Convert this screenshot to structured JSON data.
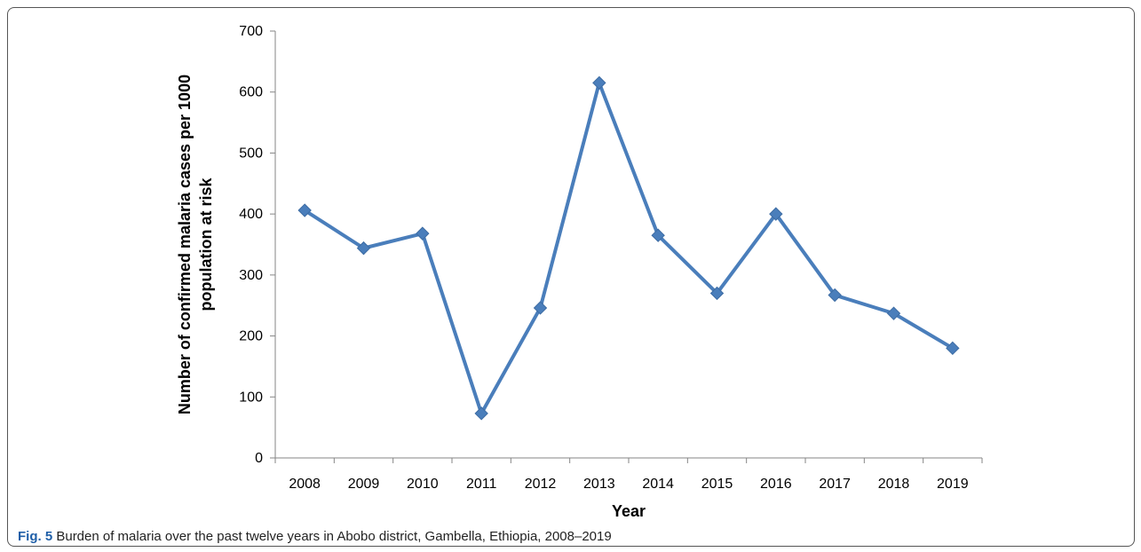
{
  "caption": {
    "label": "Fig. 5",
    "text": "Burden of malaria over the past twelve years in Abobo district, Gambella, Ethiopia, 2008–2019"
  },
  "chart_data": {
    "type": "line",
    "title": "",
    "xlabel": "Year",
    "ylabel_lines": [
      "Number of confirmed malaria cases per 1000",
      "population at risk"
    ],
    "categories": [
      "2008",
      "2009",
      "2010",
      "2011",
      "2012",
      "2013",
      "2014",
      "2015",
      "2016",
      "2017",
      "2018",
      "2019"
    ],
    "values": [
      406,
      344,
      368,
      73,
      246,
      615,
      365,
      270,
      400,
      267,
      237,
      180
    ],
    "ylim": [
      0,
      700
    ],
    "yticks": [
      0,
      100,
      200,
      300,
      400,
      500,
      600,
      700
    ],
    "grid": false,
    "legend": "none",
    "color": "#4a7ebb",
    "marker": "diamond"
  }
}
